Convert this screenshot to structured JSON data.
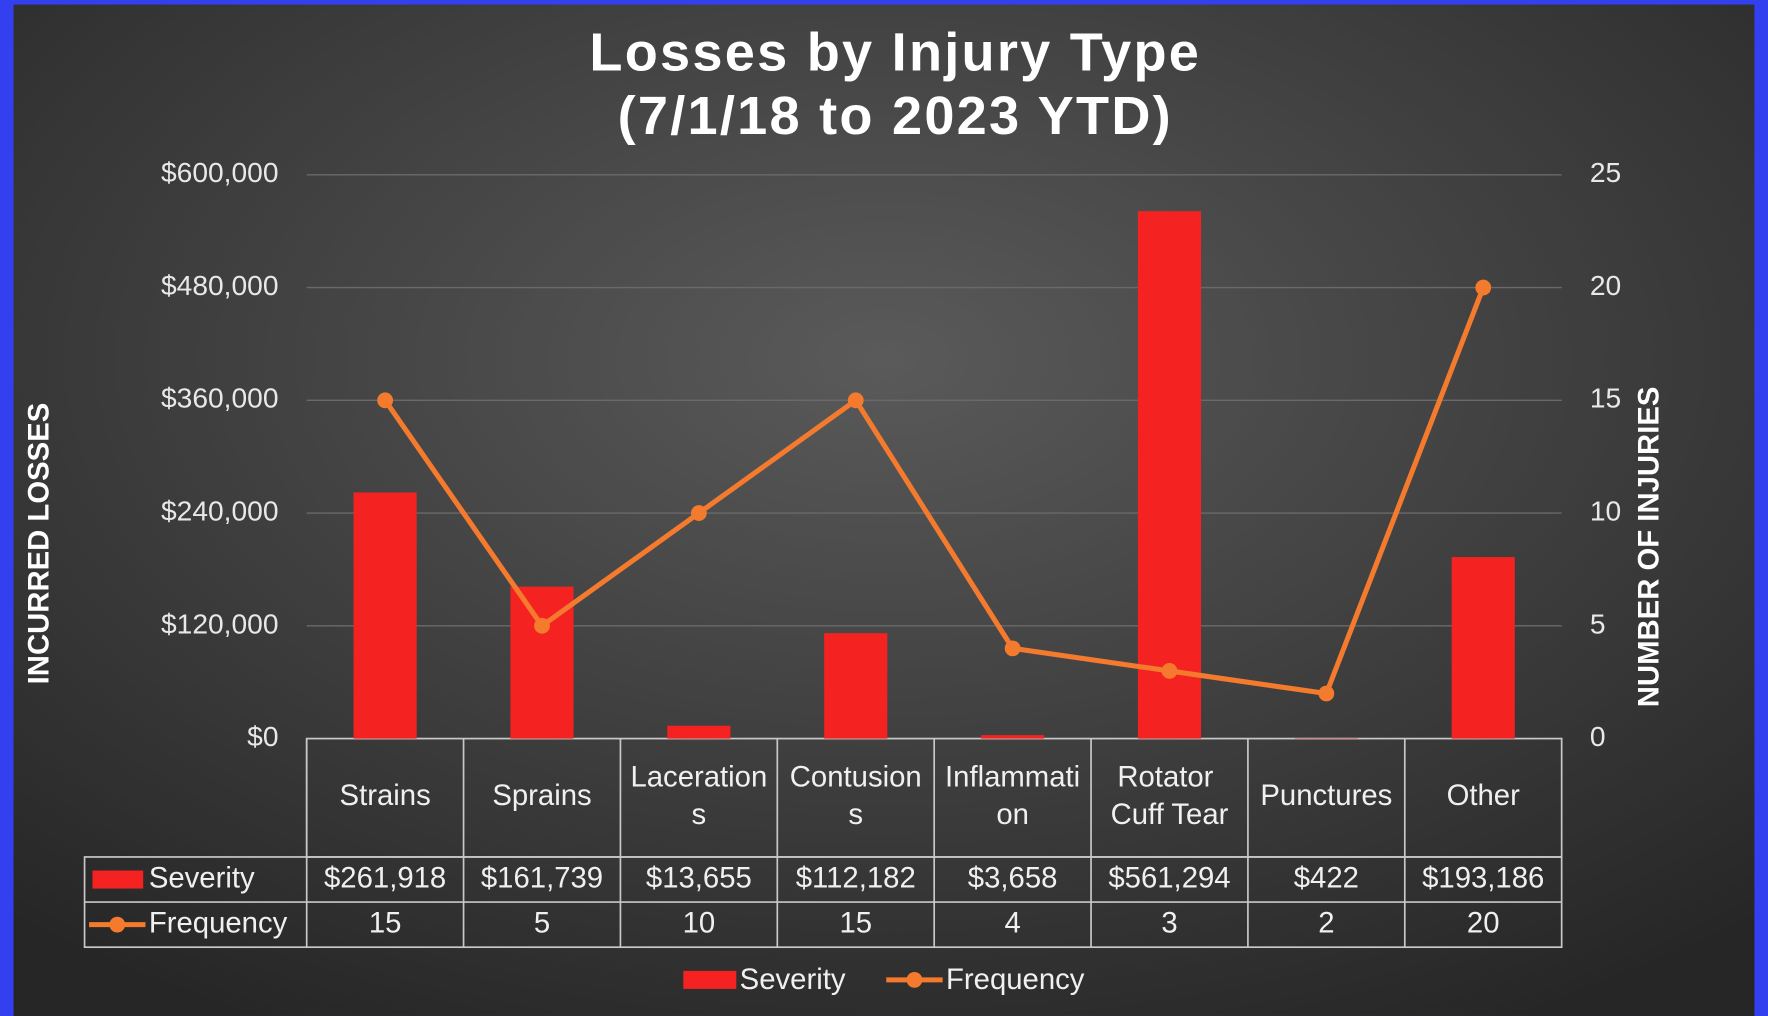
{
  "chart_data": {
    "type": "bar_line",
    "title": "Losses by Injury Type",
    "subtitle": "(7/1/18 to 2023 YTD)",
    "y_label": "INCURRED LOSSES",
    "y2_label": "NUMBER OF INJURIES",
    "categories": [
      "Strains",
      "Sprains",
      "Lacerations",
      "Contusions",
      "Inflammation",
      "Rotator Cuff Tear",
      "Punctures",
      "Other"
    ],
    "series": [
      {
        "name": "Severity",
        "type": "bar",
        "color": "#f52222",
        "values": [
          261918,
          161739,
          13655,
          112182,
          3658,
          561294,
          422,
          193186
        ],
        "value_labels": [
          "$261,918",
          "$161,739",
          "$13,655",
          "$112,182",
          "$3,658",
          "$561,294",
          "$422",
          "$193,186"
        ]
      },
      {
        "name": "Frequency",
        "type": "line",
        "axis": "y2",
        "color": "#f47a2e",
        "values": [
          15,
          5,
          10,
          15,
          4,
          3,
          2,
          20
        ]
      }
    ],
    "ylim": [
      0,
      600000
    ],
    "yticks": [
      {
        "value": 0,
        "label": "$0"
      },
      {
        "value": 120000,
        "label": "$120,000"
      },
      {
        "value": 240000,
        "label": "$240,000"
      },
      {
        "value": 360000,
        "label": "$360,000"
      },
      {
        "value": 480000,
        "label": "$480,000"
      },
      {
        "value": 600000,
        "label": "$600,000"
      }
    ],
    "y2lim": [
      0,
      25
    ],
    "y2ticks": [
      0,
      5,
      10,
      15,
      20,
      25
    ],
    "grid": true
  }
}
